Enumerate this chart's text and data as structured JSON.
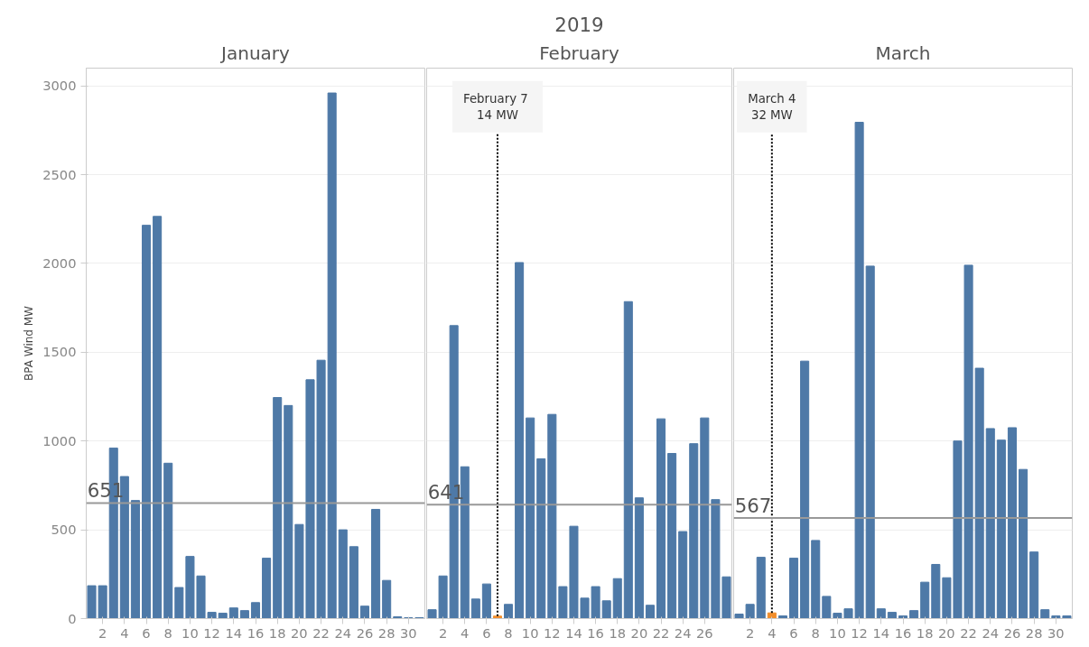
{
  "chart_data": [
    {
      "type": "bar",
      "subtitle": "January",
      "ylabel": "BPA Wind MW",
      "x": [
        1,
        2,
        3,
        4,
        5,
        6,
        7,
        8,
        9,
        10,
        11,
        12,
        13,
        14,
        15,
        16,
        17,
        18,
        19,
        20,
        21,
        22,
        23,
        24,
        25,
        26,
        27,
        28,
        29,
        30,
        31
      ],
      "values": [
        185,
        185,
        960,
        800,
        665,
        2215,
        2265,
        875,
        175,
        350,
        240,
        35,
        30,
        60,
        45,
        90,
        340,
        1245,
        1200,
        530,
        1345,
        1455,
        2960,
        500,
        405,
        70,
        615,
        215,
        10,
        5,
        5
      ],
      "colors": [
        "#4e79a7",
        "#4e79a7",
        "#4e79a7",
        "#4e79a7",
        "#4e79a7",
        "#4e79a7",
        "#4e79a7",
        "#4e79a7",
        "#4e79a7",
        "#4e79a7",
        "#4e79a7",
        "#4e79a7",
        "#4e79a7",
        "#4e79a7",
        "#4e79a7",
        "#4e79a7",
        "#4e79a7",
        "#4e79a7",
        "#4e79a7",
        "#4e79a7",
        "#4e79a7",
        "#4e79a7",
        "#4e79a7",
        "#4e79a7",
        "#4e79a7",
        "#4e79a7",
        "#4e79a7",
        "#4e79a7",
        "#4e79a7",
        "#4e79a7",
        "#4e79a7"
      ],
      "xlim": [
        0.5,
        31.5
      ],
      "xticks": [
        2,
        4,
        6,
        8,
        10,
        12,
        14,
        16,
        18,
        20,
        22,
        24,
        26,
        28,
        30
      ],
      "ylim": [
        0,
        3100
      ],
      "yticks": [
        0,
        500,
        1000,
        1500,
        2000,
        2500,
        3000
      ],
      "grid": "y",
      "ref_lines": [
        {
          "axis": "y",
          "value": 651,
          "label": "651",
          "color": "#999999"
        }
      ]
    },
    {
      "type": "bar",
      "title": "2019",
      "subtitle": "February",
      "x": [
        1,
        2,
        3,
        4,
        5,
        6,
        7,
        8,
        9,
        10,
        11,
        12,
        13,
        14,
        15,
        16,
        17,
        18,
        19,
        20,
        21,
        22,
        23,
        24,
        25,
        26,
        27,
        28
      ],
      "values": [
        50,
        240,
        1650,
        855,
        110,
        195,
        14,
        80,
        2005,
        1130,
        900,
        1150,
        180,
        520,
        115,
        180,
        100,
        225,
        1785,
        680,
        75,
        1125,
        930,
        490,
        985,
        1130,
        670,
        235
      ],
      "colors": [
        "#4e79a7",
        "#4e79a7",
        "#4e79a7",
        "#4e79a7",
        "#4e79a7",
        "#4e79a7",
        "#f28e2b",
        "#4e79a7",
        "#4e79a7",
        "#4e79a7",
        "#4e79a7",
        "#4e79a7",
        "#4e79a7",
        "#4e79a7",
        "#4e79a7",
        "#4e79a7",
        "#4e79a7",
        "#4e79a7",
        "#4e79a7",
        "#4e79a7",
        "#4e79a7",
        "#4e79a7",
        "#4e79a7",
        "#4e79a7",
        "#4e79a7",
        "#4e79a7",
        "#4e79a7",
        "#4e79a7"
      ],
      "xlim": [
        0.5,
        28.5
      ],
      "xticks": [
        2,
        4,
        6,
        8,
        10,
        12,
        14,
        16,
        18,
        20,
        22,
        24,
        26
      ],
      "ylim": [
        0,
        3100
      ],
      "yticks": [
        0,
        500,
        1000,
        1500,
        2000,
        2500,
        3000
      ],
      "grid": "y",
      "tick_labels": "x",
      "ref_lines": [
        {
          "axis": "y",
          "value": 641,
          "label": "641",
          "color": "#999999"
        }
      ],
      "annotations": [
        {
          "text": "February  7\n14 MW",
          "x": 7,
          "y": 14
        }
      ]
    },
    {
      "type": "bar",
      "subtitle": "March",
      "x": [
        1,
        2,
        3,
        4,
        5,
        6,
        7,
        8,
        9,
        10,
        11,
        12,
        13,
        14,
        15,
        16,
        17,
        18,
        19,
        20,
        21,
        22,
        23,
        24,
        25,
        26,
        27,
        28,
        29,
        30,
        31
      ],
      "values": [
        25,
        80,
        345,
        32,
        15,
        340,
        1450,
        440,
        125,
        30,
        55,
        2795,
        1985,
        55,
        35,
        15,
        45,
        205,
        305,
        230,
        1000,
        1990,
        1410,
        1070,
        1005,
        1075,
        840,
        375,
        50,
        15,
        15
      ],
      "colors": [
        "#4e79a7",
        "#4e79a7",
        "#4e79a7",
        "#f28e2b",
        "#4e79a7",
        "#4e79a7",
        "#4e79a7",
        "#4e79a7",
        "#4e79a7",
        "#4e79a7",
        "#4e79a7",
        "#4e79a7",
        "#4e79a7",
        "#4e79a7",
        "#4e79a7",
        "#4e79a7",
        "#4e79a7",
        "#4e79a7",
        "#4e79a7",
        "#4e79a7",
        "#4e79a7",
        "#4e79a7",
        "#4e79a7",
        "#4e79a7",
        "#4e79a7",
        "#4e79a7",
        "#4e79a7",
        "#4e79a7",
        "#4e79a7",
        "#4e79a7",
        "#4e79a7"
      ],
      "xlim": [
        0.5,
        31.5
      ],
      "xticks": [
        2,
        4,
        6,
        8,
        10,
        12,
        14,
        16,
        18,
        20,
        22,
        24,
        26,
        28,
        30
      ],
      "ylim": [
        0,
        3100
      ],
      "yticks": [
        0,
        500,
        1000,
        1500,
        2000,
        2500,
        3000
      ],
      "grid": "y",
      "tick_labels": "x",
      "ref_lines": [
        {
          "axis": "y",
          "value": 567,
          "label": "567",
          "color": "#999999"
        }
      ],
      "annotations": [
        {
          "text": "March 4\n32 MW",
          "x": 4,
          "y": 32
        }
      ]
    }
  ]
}
